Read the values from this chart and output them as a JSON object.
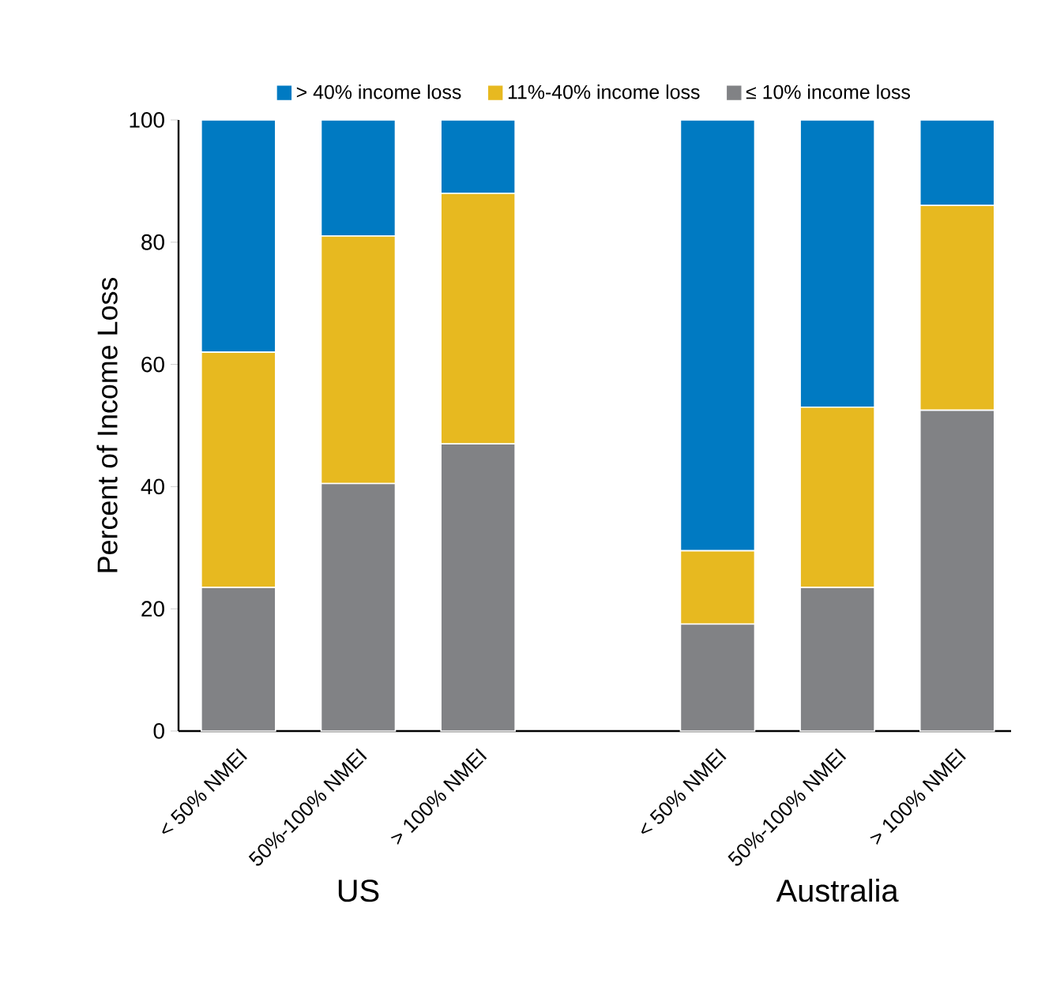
{
  "chart_data": {
    "type": "bar",
    "stacked": true,
    "ylabel": "Percent of Income Loss",
    "categories": [
      "< 50% NMEI",
      "50%-100% NMEI",
      "> 100% NMEI",
      null,
      "< 50% NMEI",
      "50%-100% NMEI",
      "> 100% NMEI"
    ],
    "series": [
      {
        "name": "≤ 10% income loss",
        "color": "#818285",
        "values": [
          23.5,
          40.5,
          47,
          null,
          17.5,
          23.5,
          52.5
        ]
      },
      {
        "name": "11%-40% income loss",
        "color": "#e7b920",
        "values": [
          38.5,
          40.5,
          41,
          null,
          12,
          29.5,
          33.5
        ]
      },
      {
        "name": "> 40% income loss",
        "color": "#007ac2",
        "values": [
          38,
          19,
          12,
          null,
          70.5,
          47,
          14
        ]
      }
    ],
    "ylim": [
      0,
      100
    ],
    "yticks": [
      0,
      20,
      40,
      60,
      80,
      100
    ],
    "legend": "top",
    "grid": false,
    "annotations": [
      "US",
      "Australia"
    ]
  }
}
